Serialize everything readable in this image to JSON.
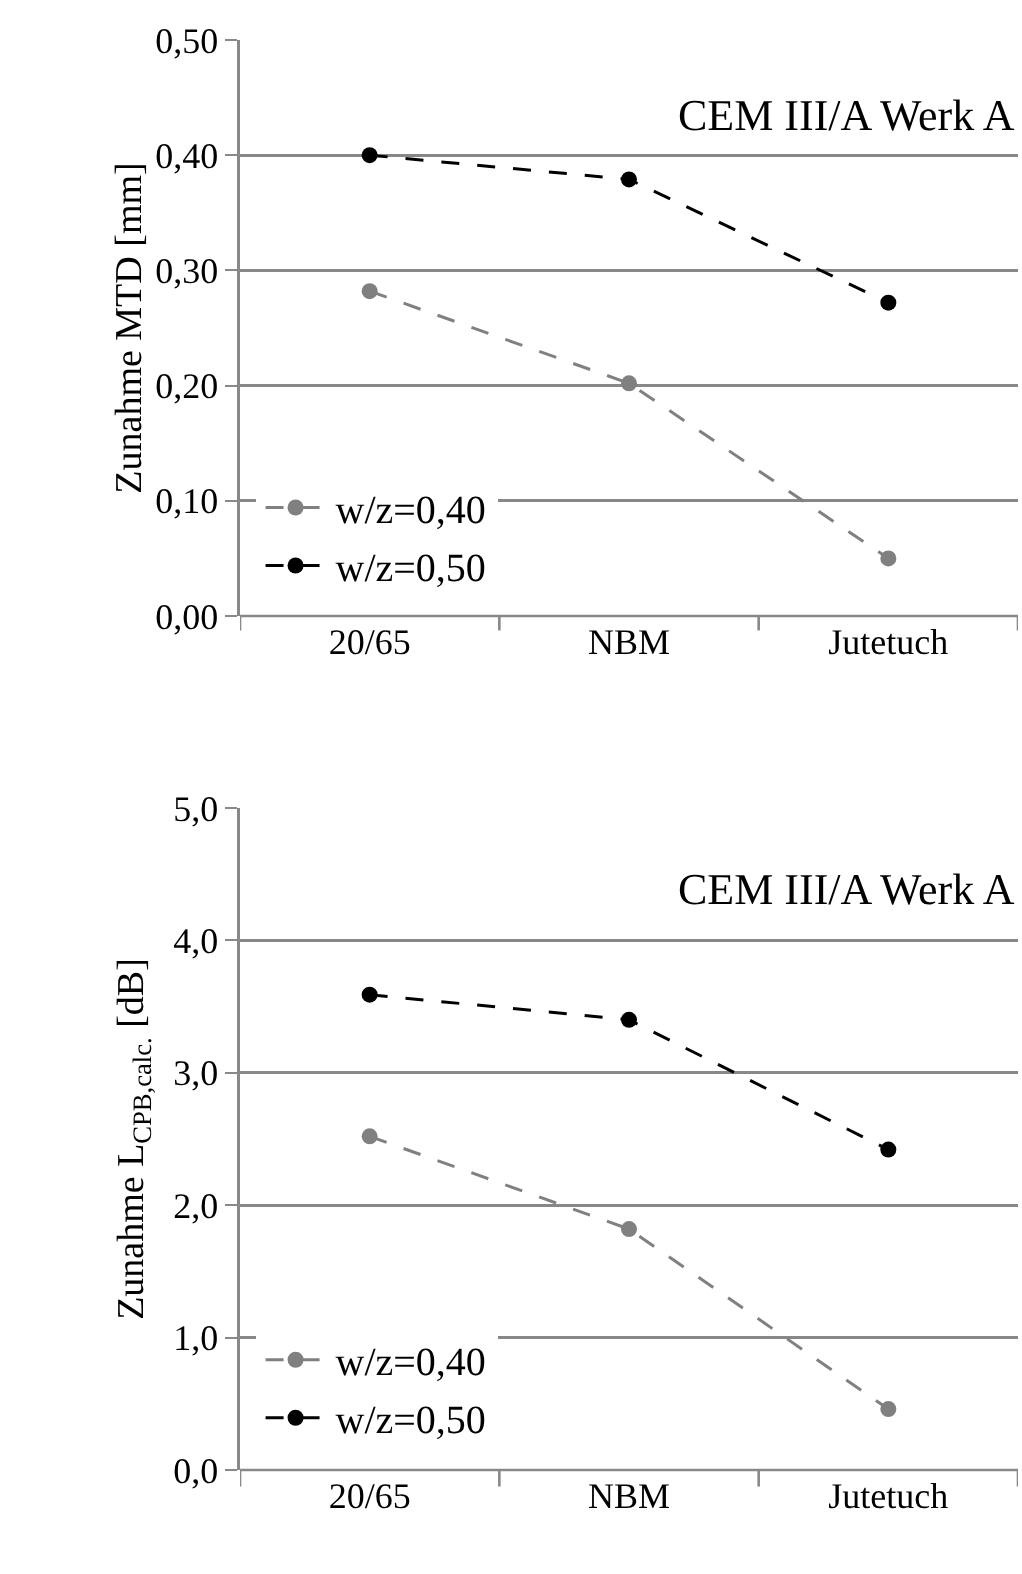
{
  "chart_data": [
    {
      "type": "line",
      "ylabel": "Zunahme MTD [mm]",
      "annotations": [
        "CEM III/A Werk A"
      ],
      "categories": [
        "20/65",
        "NBM",
        "Jutetuch"
      ],
      "series": [
        {
          "name": "w/z=0,40",
          "color": "#808080",
          "values": [
            0.282,
            0.202,
            0.05
          ]
        },
        {
          "name": "w/z=0,50",
          "color": "#000000",
          "values": [
            0.4,
            0.379,
            0.272
          ]
        }
      ],
      "ylim": [
        0,
        0.5
      ],
      "yticks": [
        {
          "value": 0,
          "label": "0,00"
        },
        {
          "value": 0.1,
          "label": "0,10"
        },
        {
          "value": 0.2,
          "label": "0,20"
        },
        {
          "value": 0.3,
          "label": "0,30"
        },
        {
          "value": 0.4,
          "label": "0,40"
        },
        {
          "value": 0.5,
          "label": "0,50"
        }
      ],
      "grid": "y",
      "legend": "bottom left",
      "marker": "circle",
      "line_style": "dashed"
    },
    {
      "type": "line",
      "ylabel": "Zunahme L$_{CPB,calc.}$ [dB]",
      "annotations": [
        "CEM III/A Werk A"
      ],
      "categories": [
        "20/65",
        "NBM",
        "Jutetuch"
      ],
      "series": [
        {
          "name": "w/z=0,40",
          "color": "#808080",
          "values": [
            2.52,
            1.82,
            0.46
          ]
        },
        {
          "name": "w/z=0,50",
          "color": "#000000",
          "values": [
            3.59,
            3.4,
            2.42
          ]
        }
      ],
      "ylim": [
        0,
        5
      ],
      "yticks": [
        {
          "value": 0,
          "label": "0,0"
        },
        {
          "value": 1,
          "label": "1,0"
        },
        {
          "value": 2,
          "label": "2,0"
        },
        {
          "value": 3,
          "label": "3,0"
        },
        {
          "value": 4,
          "label": "4,0"
        },
        {
          "value": 5,
          "label": "5,0"
        }
      ],
      "grid": "y",
      "legend": "bottom left",
      "marker": "circle",
      "line_style": "dashed"
    }
  ]
}
